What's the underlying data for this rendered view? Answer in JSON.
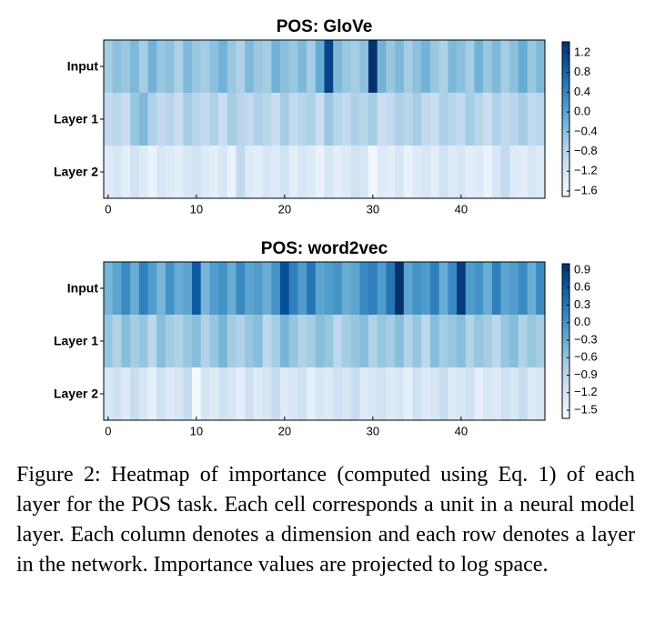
{
  "chart_data": [
    {
      "type": "heatmap",
      "title": "POS: GloVe",
      "colormap": "Blues",
      "x": [
        0,
        1,
        2,
        3,
        4,
        5,
        6,
        7,
        8,
        9,
        10,
        11,
        12,
        13,
        14,
        15,
        16,
        17,
        18,
        19,
        20,
        21,
        22,
        23,
        24,
        25,
        26,
        27,
        28,
        29,
        30,
        31,
        32,
        33,
        34,
        35,
        36,
        37,
        38,
        39,
        40,
        41,
        42,
        43,
        44,
        45,
        46,
        47,
        48,
        49
      ],
      "xlim": [
        -0.5,
        49.5
      ],
      "xticks": [
        0,
        10,
        20,
        30,
        40
      ],
      "series": [
        {
          "name": "Input",
          "values": [
            -0.6,
            -0.4,
            -0.5,
            -0.3,
            -0.6,
            -0.2,
            -0.5,
            -0.4,
            -0.7,
            -0.3,
            -0.5,
            -0.6,
            -0.4,
            -0.2,
            -0.5,
            -0.7,
            -0.3,
            -0.5,
            -0.6,
            -0.2,
            -0.4,
            -0.5,
            -0.3,
            -0.6,
            -0.1,
            1.2,
            -0.3,
            -0.5,
            -0.6,
            -0.4,
            1.4,
            -0.2,
            -0.5,
            -0.3,
            -0.6,
            -0.4,
            -0.2,
            -0.5,
            -0.7,
            -0.3,
            -0.4,
            -0.6,
            -0.2,
            -0.5,
            -0.3,
            -0.6,
            -0.4,
            -0.1,
            -0.5,
            -0.3
          ]
        },
        {
          "name": "Layer 1",
          "values": [
            -0.9,
            -0.8,
            -1.0,
            -0.5,
            -0.3,
            -0.7,
            -0.9,
            -0.8,
            -1.0,
            -0.6,
            -0.8,
            -0.9,
            -0.7,
            -1.0,
            -0.6,
            -0.8,
            -0.9,
            -0.7,
            -0.8,
            -1.0,
            -0.6,
            -0.9,
            -0.8,
            -0.7,
            -1.0,
            -0.5,
            -0.8,
            -0.9,
            -0.7,
            -0.8,
            -0.6,
            -1.0,
            -0.9,
            -0.7,
            -0.8,
            -0.6,
            -0.9,
            -1.0,
            -0.7,
            -0.8,
            -0.9,
            -0.6,
            -0.8,
            -1.0,
            -0.7,
            -0.9,
            -0.8,
            -0.6,
            -0.9,
            -0.8
          ]
        },
        {
          "name": "Layer 2",
          "values": [
            -1.3,
            -1.2,
            -1.4,
            -1.1,
            -1.3,
            -1.5,
            -1.2,
            -1.3,
            -1.4,
            -1.2,
            -1.1,
            -1.3,
            -1.4,
            -1.2,
            -1.5,
            -0.9,
            -1.3,
            -1.4,
            -1.2,
            -1.3,
            -1.1,
            -1.4,
            -1.2,
            -1.3,
            -1.5,
            -1.2,
            -1.4,
            -1.3,
            -1.1,
            -1.2,
            -1.6,
            -1.3,
            -1.4,
            -1.2,
            -1.5,
            -1.3,
            -1.2,
            -1.4,
            -1.1,
            -1.3,
            -1.2,
            -1.4,
            -1.3,
            -1.5,
            -1.2,
            -0.9,
            -1.3,
            -1.4,
            -1.2,
            -1.3
          ]
        }
      ],
      "clim": [
        -1.71,
        1.42
      ],
      "cticks": [
        {
          "value": 1.2,
          "label": "1.2"
        },
        {
          "value": 0.8,
          "label": "0.8"
        },
        {
          "value": 0.4,
          "label": "0.4"
        },
        {
          "value": 0.0,
          "label": "0.0"
        },
        {
          "value": -0.4,
          "label": "−0.4"
        },
        {
          "value": -0.8,
          "label": "−0.8"
        },
        {
          "value": -1.2,
          "label": "−1.2"
        },
        {
          "value": -1.6,
          "label": "−1.6"
        }
      ]
    },
    {
      "type": "heatmap",
      "title": "POS: word2vec",
      "colormap": "Blues",
      "x": [
        0,
        1,
        2,
        3,
        4,
        5,
        6,
        7,
        8,
        9,
        10,
        11,
        12,
        13,
        14,
        15,
        16,
        17,
        18,
        19,
        20,
        21,
        22,
        23,
        24,
        25,
        26,
        27,
        28,
        29,
        30,
        31,
        32,
        33,
        34,
        35,
        36,
        37,
        38,
        39,
        40,
        41,
        42,
        43,
        44,
        45,
        46,
        47,
        48,
        49
      ],
      "xlim": [
        -0.5,
        49.5
      ],
      "xticks": [
        0,
        10,
        20,
        30,
        40
      ],
      "series": [
        {
          "name": "Input",
          "values": [
            -0.4,
            -0.2,
            0.1,
            -0.3,
            0.2,
            -0.1,
            -0.4,
            0.0,
            -0.3,
            -0.2,
            0.6,
            -0.4,
            -0.1,
            0.0,
            -0.3,
            0.1,
            -0.2,
            -0.1,
            -0.3,
            0.0,
            0.7,
            0.2,
            -0.1,
            0.3,
            -0.2,
            -0.1,
            0.0,
            -0.3,
            -0.2,
            0.1,
            0.2,
            -0.1,
            0.3,
            1.0,
            -0.2,
            0.0,
            -0.1,
            0.2,
            -0.3,
            0.1,
            0.9,
            -0.1,
            0.0,
            -0.3,
            0.2,
            -0.2,
            -0.1,
            0.1,
            -0.3,
            0.1
          ]
        },
        {
          "name": "Layer 1",
          "values": [
            -0.6,
            -0.8,
            -0.5,
            -0.7,
            -0.6,
            -0.9,
            -0.5,
            -0.7,
            -0.8,
            -0.6,
            -0.5,
            -0.8,
            -0.6,
            -0.4,
            -0.7,
            -0.8,
            -0.6,
            -0.5,
            -0.9,
            -0.7,
            -0.4,
            -0.6,
            -0.8,
            -0.7,
            -0.5,
            -0.6,
            -0.9,
            -0.7,
            -0.6,
            -0.5,
            -0.8,
            -0.6,
            -0.7,
            -0.5,
            -0.8,
            -0.6,
            -0.9,
            -0.5,
            -0.7,
            -0.6,
            -0.5,
            -0.8,
            -0.6,
            -0.7,
            -0.9,
            -0.6,
            -0.5,
            -0.8,
            -0.6,
            -0.7
          ]
        },
        {
          "name": "Layer 2",
          "values": [
            -1.2,
            -1.1,
            -1.3,
            -1.0,
            -1.2,
            -1.4,
            -1.1,
            -1.3,
            -1.2,
            -1.0,
            -1.6,
            -1.2,
            -1.3,
            -1.1,
            -1.2,
            -1.4,
            -1.1,
            -1.3,
            -1.2,
            -1.0,
            -1.3,
            -1.2,
            -1.1,
            -1.4,
            -1.2,
            -1.3,
            -1.1,
            -1.2,
            -1.0,
            -1.3,
            -1.2,
            -1.1,
            -1.3,
            -1.2,
            -1.4,
            -1.1,
            -1.3,
            -1.2,
            -1.0,
            -1.3,
            -1.2,
            -1.1,
            -1.4,
            -1.2,
            -1.3,
            -1.1,
            -1.2,
            -1.0,
            -1.3,
            -1.2
          ]
        }
      ],
      "clim": [
        -1.64,
        1.01
      ],
      "cticks": [
        {
          "value": 0.9,
          "label": "0.9"
        },
        {
          "value": 0.6,
          "label": "0.6"
        },
        {
          "value": 0.3,
          "label": "0.3"
        },
        {
          "value": 0.0,
          "label": "0.0"
        },
        {
          "value": -0.3,
          "label": "−0.3"
        },
        {
          "value": -0.6,
          "label": "−0.6"
        },
        {
          "value": -0.9,
          "label": "−0.9"
        },
        {
          "value": -1.2,
          "label": "−1.2"
        },
        {
          "value": -1.5,
          "label": "−1.5"
        }
      ]
    }
  ],
  "caption": "Figure 2: Heatmap of importance (computed using Eq. 1) of each layer for the POS task.  Each cell corresponds a unit in a neural model layer.  Each column denotes a dimension and each row denotes a layer in the network. Importance values are projected to log space."
}
